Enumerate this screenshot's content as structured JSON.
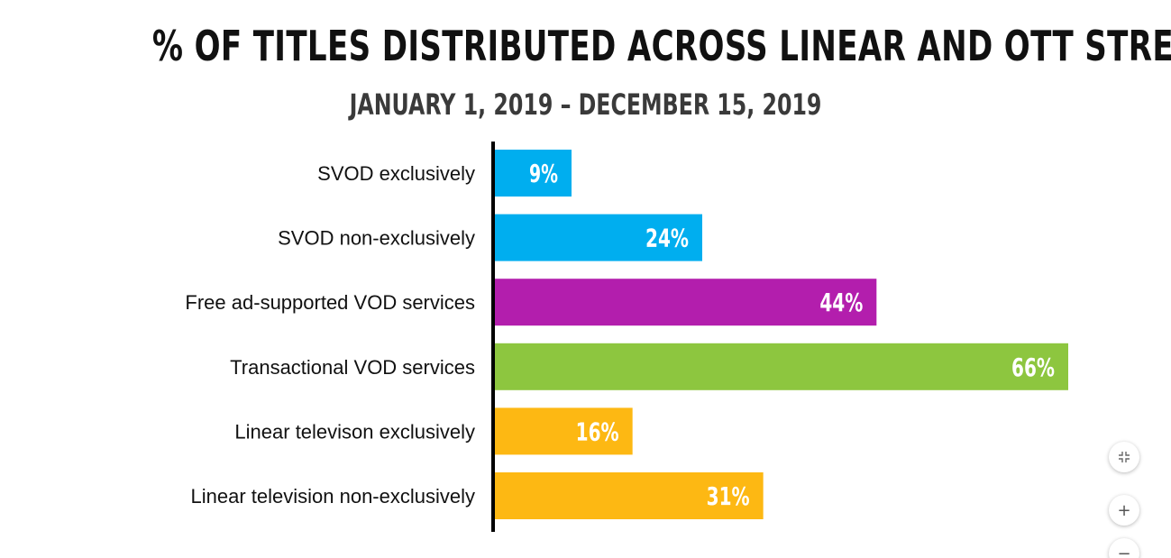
{
  "chart_data": {
    "type": "bar",
    "orientation": "horizontal",
    "title": "% OF TITLES DISTRIBUTED ACROSS LINEAR AND OTT STREAMING SERVICES",
    "subtitle": "JANUARY 1, 2019 – DECEMBER 15, 2019",
    "categories": [
      "SVOD exclusively",
      "SVOD non-exclusively",
      "Free ad-supported VOD services",
      "Transactional VOD services",
      "Linear televison exclusively",
      "Linear television non-exclusively"
    ],
    "values": [
      9,
      24,
      44,
      66,
      16,
      31
    ],
    "data_labels": [
      "9%",
      "24%",
      "44%",
      "66%",
      "16%",
      "31%"
    ],
    "colors": [
      "#00aeef",
      "#00aeef",
      "#b31ead",
      "#8dc63f",
      "#fdb813",
      "#fdb813"
    ],
    "xlim": [
      0,
      66
    ],
    "grid": false,
    "legend": "none"
  },
  "controls": {
    "collapse_icon": "collapse-icon",
    "zoom_in_label": "+",
    "zoom_out_label": "−"
  }
}
